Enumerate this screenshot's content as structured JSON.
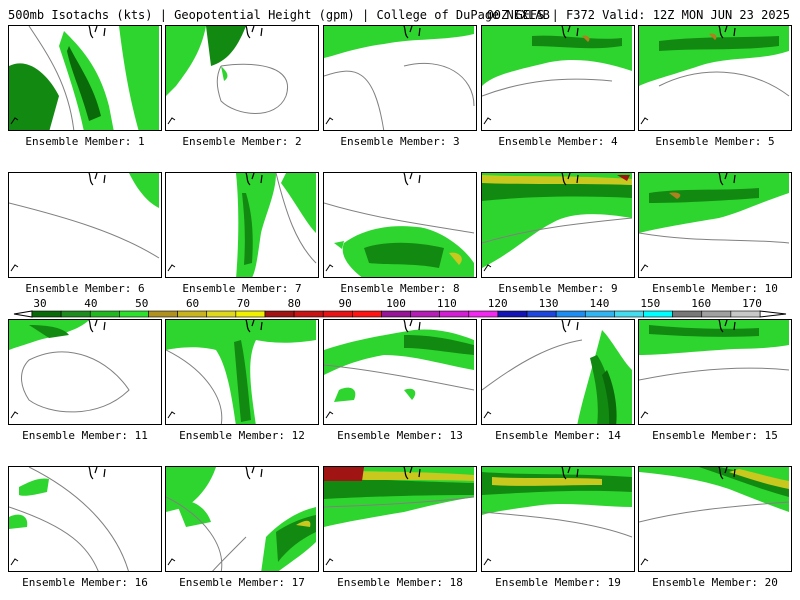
{
  "header": {
    "left": "500mb Isotachs (kts) | Geopotential Height (gpm) | College of DuPage NEXLAB",
    "right": "00Z GEFS | F372 Valid: 12Z MON JUN 23 2025"
  },
  "panels": [
    {
      "label": "Ensemble Member: 1"
    },
    {
      "label": "Ensemble Member: 2"
    },
    {
      "label": "Ensemble Member: 3"
    },
    {
      "label": "Ensemble Member: 4"
    },
    {
      "label": "Ensemble Member: 5"
    },
    {
      "label": "Ensemble Member: 6"
    },
    {
      "label": "Ensemble Member: 7"
    },
    {
      "label": "Ensemble Member: 8"
    },
    {
      "label": "Ensemble Member: 9"
    },
    {
      "label": "Ensemble Member: 10"
    },
    {
      "label": "Ensemble Member: 11"
    },
    {
      "label": "Ensemble Member: 12"
    },
    {
      "label": "Ensemble Member: 13"
    },
    {
      "label": "Ensemble Member: 14"
    },
    {
      "label": "Ensemble Member: 15"
    },
    {
      "label": "Ensemble Member: 16"
    },
    {
      "label": "Ensemble Member: 17"
    },
    {
      "label": "Ensemble Member: 18"
    },
    {
      "label": "Ensemble Member: 19"
    },
    {
      "label": "Ensemble Member: 20"
    }
  ],
  "colorbar": {
    "ticks": [
      "30",
      "40",
      "50",
      "60",
      "70",
      "80",
      "90",
      "100",
      "110",
      "120",
      "130",
      "140",
      "150",
      "160",
      "170"
    ],
    "colors": [
      "#0a6a0a",
      "#1e8c1e",
      "#22b822",
      "#2ee02e",
      "#b0901e",
      "#c8b41e",
      "#e0d81e",
      "#f0f000",
      "#a01414",
      "#c81414",
      "#e61414",
      "#ff1414",
      "#961496",
      "#b41eb4",
      "#d21ed2",
      "#f028f0",
      "#1414b4",
      "#1e46dc",
      "#1e8cf0",
      "#32b4f0",
      "#46dcf0",
      "#00ffff",
      "#787878",
      "#a0a0a0",
      "#c8c8c8"
    ]
  }
}
